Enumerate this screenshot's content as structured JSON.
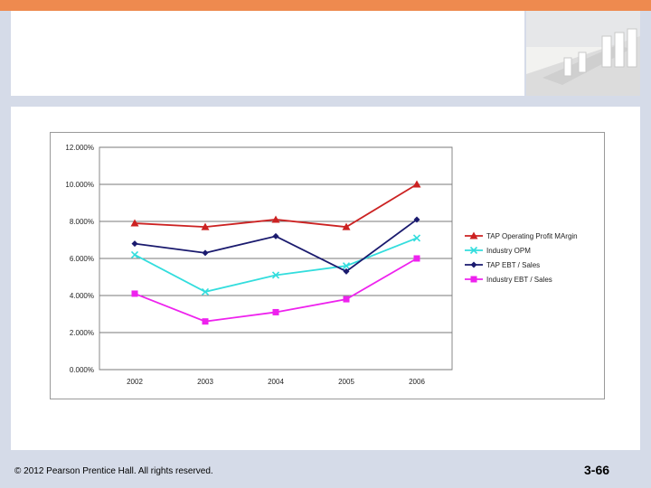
{
  "slide": {
    "copyright": "© 2012 Pearson Prentice Hall. All rights reserved.",
    "page_number": "3-66",
    "accent_color": "#ee8a4f",
    "background_color": "#d5dbe8"
  },
  "header_image": {
    "icon": "conference-room-photo"
  },
  "chart_data": {
    "type": "line",
    "categories": [
      "2002",
      "2003",
      "2004",
      "2005",
      "2006"
    ],
    "ylim": [
      0,
      12
    ],
    "y_ticks": [
      "0.000%",
      "2.000%",
      "4.000%",
      "6.000%",
      "8.000%",
      "10.000%",
      "12.000%"
    ],
    "grid": "horizontal",
    "legend_position": "right",
    "series": [
      {
        "name": "TAP Operating Profit MArgin",
        "values": [
          7.9,
          7.7,
          8.1,
          7.7,
          10.0
        ],
        "color": "#cc2222",
        "marker": "triangle"
      },
      {
        "name": "Industry OPM",
        "values": [
          6.2,
          4.2,
          5.1,
          5.6,
          7.1
        ],
        "color": "#33dddd",
        "marker": "x"
      },
      {
        "name": "TAP EBT / Sales",
        "values": [
          6.8,
          6.3,
          7.2,
          5.3,
          8.1
        ],
        "color": "#1a1a6e",
        "marker": "diamond"
      },
      {
        "name": "Industry EBT / Sales",
        "values": [
          4.1,
          2.6,
          3.1,
          3.8,
          6.0
        ],
        "color": "#ee22ee",
        "marker": "square"
      }
    ]
  }
}
